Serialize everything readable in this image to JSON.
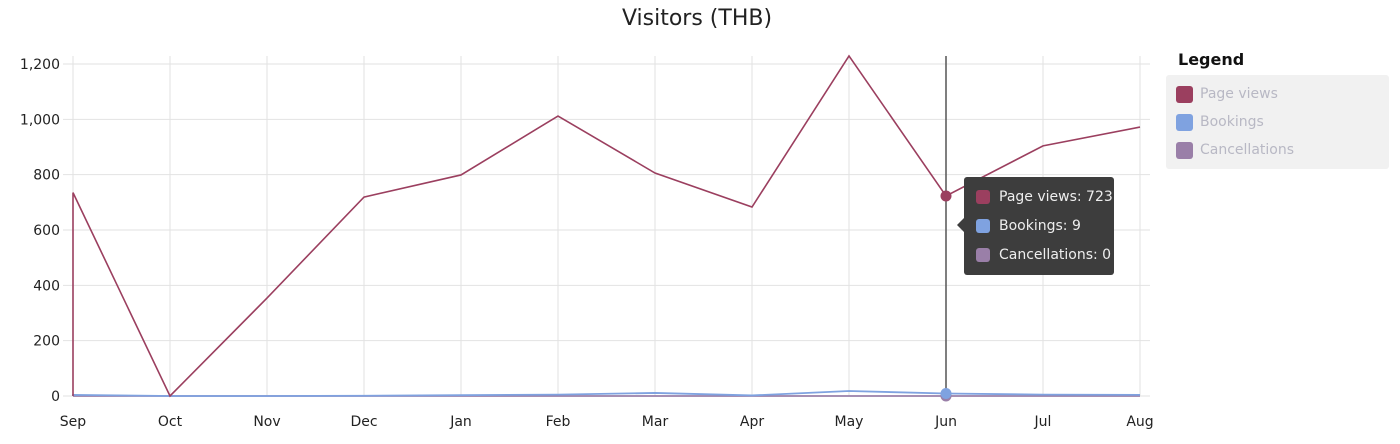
{
  "chart_data": {
    "type": "line",
    "title": "Visitors (THB)",
    "categories": [
      "Sep",
      "Oct",
      "Nov",
      "Dec",
      "Jan",
      "Feb",
      "Mar",
      "Apr",
      "May",
      "Jun",
      "Jul",
      "Aug"
    ],
    "series": [
      {
        "name": "Page views",
        "color": "#9b3f5f",
        "values": [
          735,
          0,
          354,
          719,
          799,
          1012,
          806,
          683,
          1229,
          723,
          904,
          972
        ]
      },
      {
        "name": "Bookings",
        "color": "#7fa2e0",
        "values": [
          4,
          0,
          0,
          1,
          3,
          5,
          11,
          2,
          18,
          9,
          5,
          4
        ]
      },
      {
        "name": "Cancellations",
        "color": "#9a7fa8",
        "values": [
          0,
          0,
          0,
          0,
          0,
          0,
          0,
          0,
          0,
          0,
          0,
          0
        ]
      }
    ],
    "ylim": [
      0,
      1200
    ],
    "yticks": [
      0,
      200,
      400,
      600,
      800,
      1000,
      1200
    ],
    "ytick_labels": [
      "0",
      "200",
      "400",
      "600",
      "800",
      "1,000",
      "1,200"
    ],
    "grid": true,
    "legend_placement": "right",
    "legend_title": "Legend",
    "hover_index": 9
  },
  "tooltip": {
    "rows": [
      "Page views: 723",
      "Bookings: 9",
      "Cancellations: 0"
    ]
  }
}
